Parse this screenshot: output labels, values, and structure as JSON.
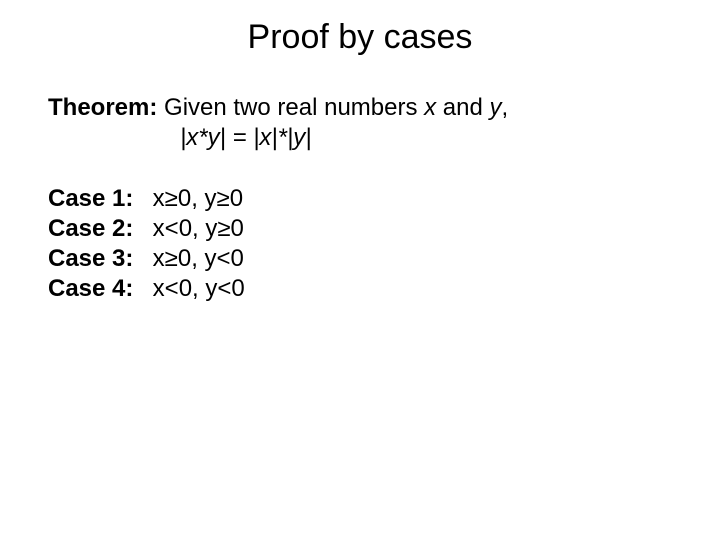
{
  "title": "Proof by cases",
  "theorem": {
    "label": "Theorem:",
    "text_prefix": " Given two real numbers ",
    "var1": "x",
    "mid": " and ",
    "var2": "y",
    "suffix": ","
  },
  "equation": "|x*y| = |x|*|y|",
  "cases": [
    {
      "label": "Case 1:",
      "cond": "x≥0, y≥0"
    },
    {
      "label": "Case 2:",
      "cond": "x<0, y≥0"
    },
    {
      "label": "Case 3:",
      "cond": "x≥0, y<0"
    },
    {
      "label": "Case 4:",
      "cond": "x<0, y<0"
    }
  ],
  "style": {
    "background_color": "#ffffff",
    "text_color": "#000000",
    "title_fontsize": 34,
    "body_fontsize": 24,
    "font_family": "Comic Sans MS"
  }
}
